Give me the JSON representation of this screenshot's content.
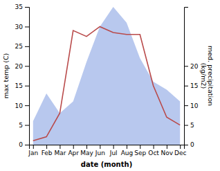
{
  "chart_data": {
    "type": "line",
    "categories": [
      "Jan",
      "Feb",
      "Mar",
      "Apr",
      "May",
      "Jun",
      "Jul",
      "Aug",
      "Sep",
      "Oct",
      "Nov",
      "Dec"
    ],
    "xlabel": "date (month)",
    "ylabel": "max temp (C)",
    "y2label": "med. precipitation\n(kg/m2)",
    "ylim": [
      0,
      35
    ],
    "yticks": [
      0,
      5,
      10,
      15,
      20,
      25,
      30,
      35
    ],
    "y2lim": [
      0,
      35
    ],
    "y2ticks": [
      0,
      5,
      10,
      15,
      20
    ],
    "series": [
      {
        "type": "area",
        "axis": "y2",
        "color": "#b8c8ee",
        "values": [
          6,
          13,
          8,
          11,
          21,
          30,
          35,
          31,
          22,
          16,
          14,
          11
        ]
      },
      {
        "type": "line",
        "color": "#b94a4a",
        "values": [
          1,
          2,
          8,
          29,
          27.5,
          30,
          28.5,
          28,
          28,
          15,
          7,
          5
        ]
      }
    ]
  }
}
